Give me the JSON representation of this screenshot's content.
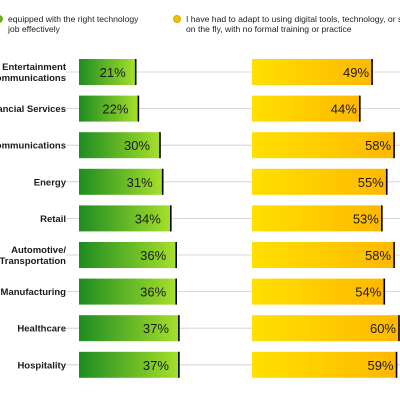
{
  "chart_data": {
    "type": "bar",
    "categories": [
      "Entertainment\nCommunications",
      "Financial Services",
      "Communications",
      "Energy",
      "Retail",
      "Automotive/\nTransportation",
      "Manufacturing",
      "Healthcare",
      "Hospitality"
    ],
    "series": [
      {
        "name": "equipped with the right technology job effectively",
        "values": [
          21,
          22,
          30,
          31,
          34,
          36,
          36,
          37,
          37
        ],
        "labels": [
          "21%",
          "22%",
          "30%",
          "31%",
          "34%",
          "36%",
          "36%",
          "37%",
          "37%"
        ],
        "color_start": "#1e8c22",
        "color_end": "#a6e02a"
      },
      {
        "name": "I have had to adapt to using digital tools, technology, or soluti on the fly, with no formal training or practice",
        "values": [
          49,
          44,
          58,
          55,
          53,
          58,
          54,
          60,
          59
        ],
        "labels": [
          "49%",
          "44%",
          "58%",
          "55%",
          "53%",
          "58%",
          "54%",
          "60%",
          "59%"
        ],
        "color_start": "#ffe000",
        "color_end": "#ffb800"
      }
    ],
    "legend": {
      "series1_lines": [
        "equipped with the right technology",
        "job effectively"
      ],
      "series2_lines": [
        "I have had to adapt to using digital tools, technology, or soluti",
        "on the fly, with no formal training or practice"
      ]
    },
    "grid": false,
    "legend_position": "top"
  },
  "colors": {
    "green_marker": "#6ab023",
    "yellow_marker": "#f2c400",
    "separator": "#cccccc",
    "bar_end_line": "#000000"
  }
}
